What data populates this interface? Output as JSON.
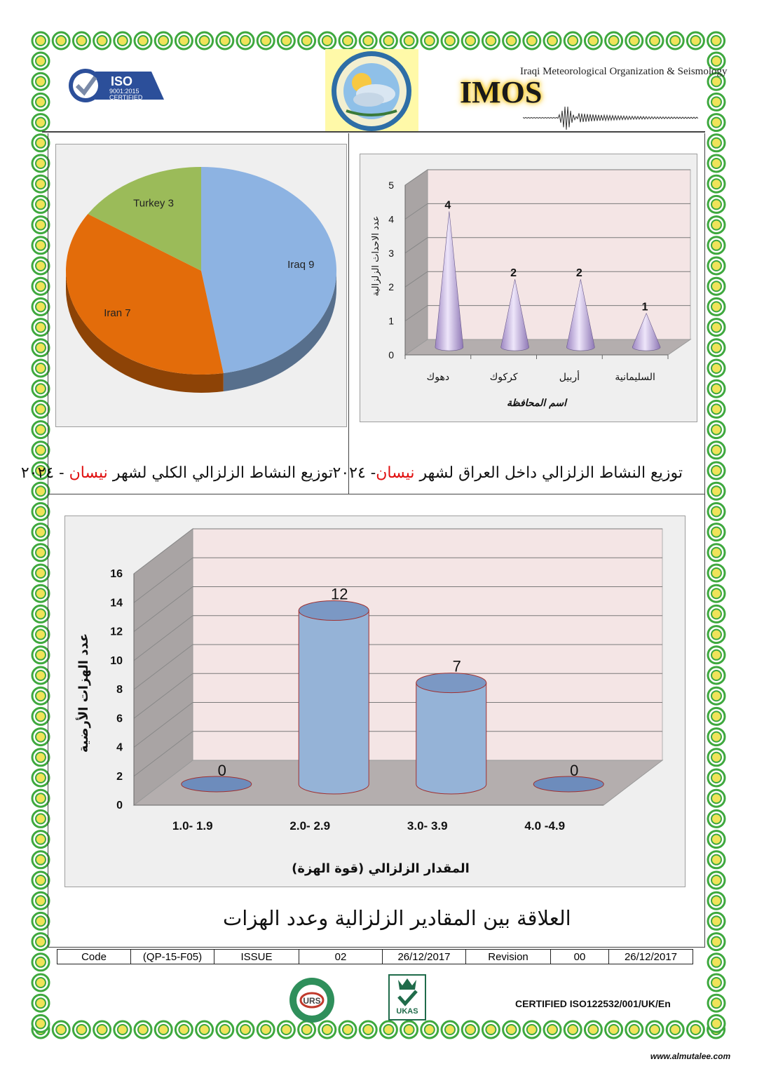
{
  "header": {
    "iso_badge": {
      "title": "ISO",
      "line1": "9001:2015",
      "line2": "CERTIFIED"
    },
    "org_name_en": "Iraqi Meteorological Organization & Seismology",
    "org_abbr": "IMOS",
    "colors": {
      "imos_text": "#1a1a1a",
      "imos_glow": "#f5c000",
      "logo_bg": "#fff9a8"
    }
  },
  "pie_panel": {
    "caption_main": "توزيع النشاط الزلزالي الكلي لشهر",
    "caption_month": "نيسان",
    "caption_year": "- ٢٠٢٤"
  },
  "cone_panel": {
    "caption_main": "توزيع النشاط الزلزالي داخل العراق لشهر",
    "caption_month": "نيسان",
    "caption_year": "- ٢٠٢٤"
  },
  "bar_panel": {
    "caption": "العلاقة بين المقادير الزلزالية وعدد الهزات"
  },
  "chart_data": [
    {
      "type": "pie",
      "labels": [
        "Iraq 9",
        "Iran 7",
        "Turkey 3"
      ],
      "categories": [
        "Iraq",
        "Iran",
        "Turkey"
      ],
      "values": [
        9,
        7,
        3
      ],
      "colors": [
        "#8db3e2",
        "#e36c0a",
        "#9bbb59"
      ]
    },
    {
      "type": "bar",
      "categories": [
        "دهوك",
        "كركوك",
        "أربيل",
        "السليمانية"
      ],
      "values": [
        4,
        2,
        2,
        1
      ],
      "data_labels": [
        "4",
        "2",
        "2",
        "1"
      ],
      "xlabel": "اسم المحافظة",
      "ylabel": "عدد الاحداث الزلزالية",
      "ylim": [
        0,
        5
      ],
      "yticks": [
        "0",
        "1",
        "2",
        "3",
        "4",
        "5"
      ],
      "grid": true,
      "mark": "cone",
      "color": "#c6b4e0"
    },
    {
      "type": "bar",
      "categories": [
        "1.0-  1.9",
        "2.0- 2.9",
        "3.0- 3.9",
        "4.0 -4.9"
      ],
      "values": [
        0,
        12,
        7,
        0
      ],
      "data_labels": [
        "0",
        "12",
        "7",
        "0"
      ],
      "xlabel": "المقدار الزلزالي (قوة الهزة)",
      "ylabel": "عدد الهزات الأرضية",
      "ylim": [
        0,
        16
      ],
      "yticks": [
        "0",
        "2",
        "4",
        "6",
        "8",
        "10",
        "12",
        "14",
        "16"
      ],
      "grid": true,
      "mark": "cylinder",
      "color": "#95b3d7"
    }
  ],
  "footer": {
    "table": [
      "Code",
      "(QP-15-F05)",
      "ISSUE",
      "02",
      "26/12/2017",
      "Revision",
      "00",
      "26/12/2017"
    ],
    "certified": "CERTIFIED ISO122532/001/UK/En",
    "ukas_text": "UKAS",
    "urs_text": "URS",
    "website": "www.almutalee.com"
  }
}
